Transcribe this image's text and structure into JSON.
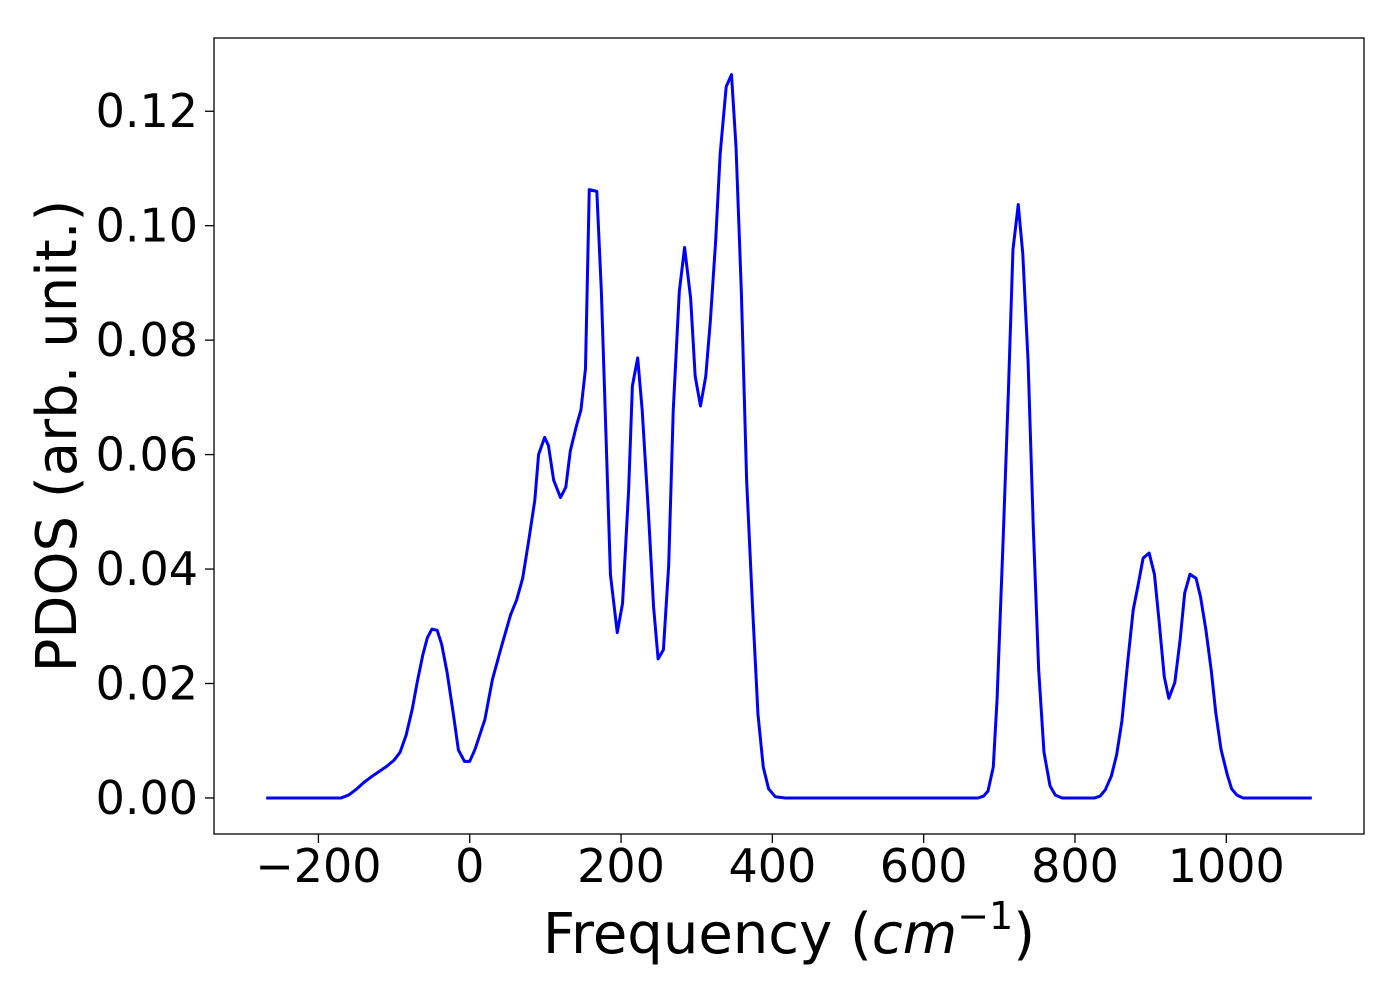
{
  "chart_data": {
    "type": "line",
    "x_label": [
      "Frequency (",
      "cm",
      "−1",
      ")"
    ],
    "y_label": "PDOS (arb. unit.)",
    "color": "#0000ff",
    "xlim": [
      -338,
      1182
    ],
    "ylim": [
      -0.0063,
      0.1328
    ],
    "xticks": [
      {
        "value": -200,
        "label": "−200"
      },
      0,
      200,
      400,
      600,
      800,
      1000
    ],
    "yticks": [
      {
        "value": 0,
        "label": "0.00"
      },
      0.02,
      0.04,
      0.06,
      0.08,
      {
        "value": 0.1,
        "label": "0.10"
      },
      0.12
    ],
    "x": [
      -269,
      -170,
      -160,
      -150,
      -140,
      -130,
      -120,
      -110,
      -100,
      -92,
      -84,
      -76,
      -69,
      -62,
      -56,
      -50,
      -43,
      -37,
      -30,
      -22,
      -15,
      -7,
      0,
      7,
      20,
      30,
      41,
      54,
      62,
      70,
      78,
      86,
      91,
      99,
      104,
      111,
      120,
      127,
      133,
      141,
      147,
      153,
      158,
      168,
      174,
      186,
      195,
      202,
      210,
      215,
      222,
      228,
      236,
      243,
      249,
      256,
      263,
      269,
      277,
      284,
      292,
      298,
      305,
      312,
      318,
      325,
      331,
      339,
      346,
      352,
      359,
      366,
      374,
      381,
      388,
      395,
      404,
      417,
      672,
      679,
      685,
      692,
      697,
      705,
      712,
      718,
      725,
      731,
      738,
      745,
      752,
      759,
      767,
      774,
      783,
      826,
      833,
      840,
      848,
      855,
      862,
      870,
      877,
      883,
      890,
      898,
      905,
      911,
      918,
      924,
      932,
      939,
      945,
      952,
      960,
      966,
      973,
      980,
      986,
      993,
      1001,
      1007,
      1014,
      1022,
      1113
    ],
    "values": [
      0,
      0,
      0.0005,
      0.0015,
      0.0027,
      0.0037,
      0.0046,
      0.0055,
      0.0066,
      0.008,
      0.011,
      0.0155,
      0.0205,
      0.025,
      0.028,
      0.0295,
      0.0293,
      0.0268,
      0.022,
      0.015,
      0.0084,
      0.0064,
      0.0064,
      0.0085,
      0.0137,
      0.0207,
      0.026,
      0.032,
      0.0346,
      0.0384,
      0.045,
      0.052,
      0.06,
      0.063,
      0.0616,
      0.0555,
      0.0525,
      0.0543,
      0.0607,
      0.065,
      0.0678,
      0.075,
      0.1063,
      0.106,
      0.0885,
      0.039,
      0.0289,
      0.034,
      0.0537,
      0.072,
      0.0769,
      0.0677,
      0.0503,
      0.0334,
      0.0243,
      0.0259,
      0.0407,
      0.0677,
      0.0885,
      0.0962,
      0.0873,
      0.0737,
      0.0685,
      0.0737,
      0.0833,
      0.0972,
      0.1125,
      0.1243,
      0.1264,
      0.1137,
      0.0885,
      0.0555,
      0.0329,
      0.0146,
      0.0054,
      0.0016,
      0.0002,
      0,
      0,
      0.0003,
      0.0012,
      0.0054,
      0.0172,
      0.045,
      0.0711,
      0.0958,
      0.1037,
      0.0951,
      0.0763,
      0.0468,
      0.0224,
      0.008,
      0.0021,
      0.0005,
      0,
      0,
      0.0003,
      0.0014,
      0.0038,
      0.0075,
      0.0134,
      0.0242,
      0.0329,
      0.0369,
      0.0419,
      0.0428,
      0.0391,
      0.0311,
      0.0212,
      0.0174,
      0.0202,
      0.0277,
      0.0358,
      0.0391,
      0.0384,
      0.0351,
      0.0294,
      0.0224,
      0.015,
      0.0085,
      0.0042,
      0.0016,
      0.0005,
      0,
      0
    ]
  }
}
